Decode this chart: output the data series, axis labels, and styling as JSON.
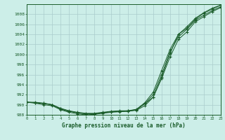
{
  "background_color": "#cceee8",
  "grid_color": "#aacccc",
  "line_color": "#1a5c2a",
  "x": [
    0,
    1,
    2,
    3,
    4,
    5,
    6,
    7,
    8,
    9,
    10,
    11,
    12,
    13,
    14,
    15,
    16,
    17,
    18,
    19,
    20,
    21,
    22,
    23
  ],
  "line1": [
    990.5,
    990.5,
    990.3,
    990.0,
    989.3,
    988.8,
    988.5,
    988.3,
    988.3,
    988.5,
    988.7,
    988.8,
    988.8,
    989.0,
    990.2,
    991.5,
    995.2,
    999.5,
    1003.0,
    1004.5,
    1006.5,
    1007.5,
    1008.5,
    1009.3
  ],
  "line2": [
    990.5,
    990.4,
    990.2,
    990.0,
    989.1,
    988.7,
    988.4,
    988.2,
    988.2,
    988.4,
    988.6,
    988.7,
    988.8,
    989.1,
    990.4,
    992.5,
    996.8,
    1001.0,
    1004.0,
    1005.2,
    1007.0,
    1008.2,
    1009.0,
    1009.8
  ],
  "line3": [
    990.5,
    990.4,
    990.3,
    990.0,
    989.2,
    988.7,
    988.4,
    988.2,
    988.2,
    988.4,
    988.6,
    988.7,
    988.7,
    989.0,
    990.2,
    992.0,
    996.0,
    1000.5,
    1003.5,
    1005.0,
    1006.8,
    1007.8,
    1008.7,
    1009.5
  ],
  "line4": [
    990.5,
    990.3,
    990.0,
    989.8,
    989.0,
    988.5,
    988.2,
    988.0,
    988.1,
    988.3,
    988.5,
    988.6,
    988.7,
    988.9,
    989.8,
    991.5,
    995.5,
    1000.2,
    1004.0,
    1005.5,
    1007.2,
    1008.3,
    1009.2,
    1009.8
  ],
  "ylim": [
    988,
    1010
  ],
  "yticks": [
    988,
    990,
    992,
    994,
    996,
    998,
    1000,
    1002,
    1004,
    1006,
    1008
  ],
  "xlim": [
    0,
    23
  ],
  "xlabel": "Graphe pression niveau de la mer (hPa)"
}
